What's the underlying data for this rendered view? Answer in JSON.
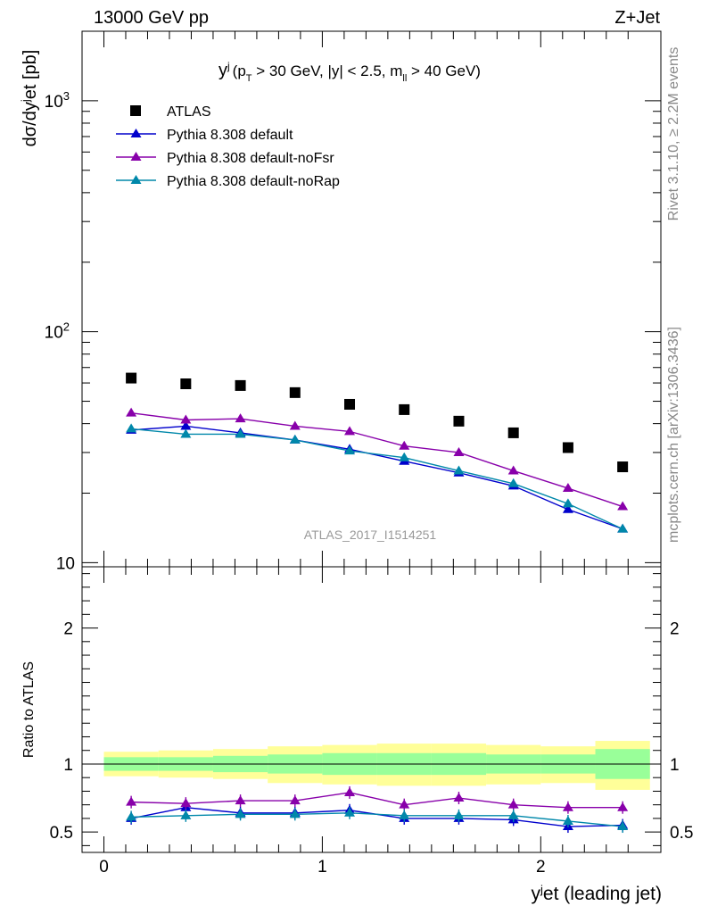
{
  "header": {
    "left": "13000 GeV pp",
    "right": "Z+Jet"
  },
  "side_labels": {
    "top": "Rivet 3.1.10, ≥ 2.2M events",
    "bottom": "mcplots.cern.ch [arXiv:1306.3436]"
  },
  "watermark": "ATLAS_2017_I1514251",
  "colors": {
    "atlas": "#000000",
    "default": "#0000cc",
    "noFsr": "#8800aa",
    "noRap": "#0088aa",
    "band_outer": "#ffff99",
    "band_inner": "#99ff99"
  },
  "chart_data": [
    {
      "type": "line",
      "panel": "main",
      "title_main": "y",
      "title_sup": "j",
      "title_cuts": "(p",
      "title_sub_T": "T",
      "title_rest1": " > 30 GeV, |y| < 2.5, m",
      "title_sub_ll": "ll",
      "title_rest2": " > 40 GeV)",
      "ylabel": "dσ/dy",
      "ylabel_sup": "j",
      "ylabel_rest": "et [pb]",
      "yscale": "log",
      "ylim": [
        9.6,
        2000
      ],
      "xlim": [
        -0.1,
        2.55
      ],
      "ytick_labels": [
        "10",
        "10",
        "10"
      ],
      "ytick_exps": [
        "",
        "2",
        "3"
      ],
      "x": [
        0.125,
        0.375,
        0.625,
        0.875,
        1.125,
        1.375,
        1.625,
        1.875,
        2.125,
        2.375
      ],
      "bin_edges": [
        0,
        0.25,
        0.5,
        0.75,
        1.0,
        1.25,
        1.5,
        1.75,
        2.0,
        2.25,
        2.5
      ],
      "legend": [
        "ATLAS",
        "Pythia 8.308 default",
        "Pythia 8.308 default-noFsr",
        "Pythia 8.308 default-noRap"
      ],
      "series": [
        {
          "name": "ATLAS",
          "key": "atlas",
          "marker": "square",
          "values": [
            63,
            59.5,
            58.5,
            54.5,
            48.5,
            46,
            41,
            36.5,
            31.5,
            26
          ]
        },
        {
          "name": "Pythia 8.308 default",
          "key": "default",
          "marker": "triangle",
          "values": [
            37.5,
            39,
            36.5,
            34,
            31,
            27.5,
            24.5,
            21.5,
            17,
            14
          ]
        },
        {
          "name": "Pythia 8.308 default-noFsr",
          "key": "noFsr",
          "marker": "triangle",
          "values": [
            44.5,
            41.5,
            42,
            39,
            37,
            32,
            30,
            25,
            21,
            17.5
          ]
        },
        {
          "name": "Pythia 8.308 default-noRap",
          "key": "noRap",
          "marker": "triangle",
          "values": [
            38,
            36,
            36,
            34,
            30.5,
            28.5,
            25,
            22,
            18,
            14
          ]
        }
      ]
    },
    {
      "type": "line",
      "panel": "ratio",
      "ylabel": "Ratio to ATLAS",
      "ylim": [
        0.35,
        2.45
      ],
      "xlim": [
        -0.1,
        2.55
      ],
      "xlabel": "y",
      "xlabel_sup": "j",
      "xlabel_rest": "et (leading jet)",
      "xtick_labels": [
        "0",
        "1",
        "2"
      ],
      "ytick_labels": [
        "0.5",
        "1",
        "2"
      ],
      "reference": 1,
      "band_outer_lo": [
        0.91,
        0.9,
        0.89,
        0.86,
        0.85,
        0.84,
        0.84,
        0.85,
        0.86,
        0.81
      ],
      "band_outer_hi": [
        1.09,
        1.1,
        1.11,
        1.13,
        1.14,
        1.15,
        1.15,
        1.14,
        1.13,
        1.17
      ],
      "band_inner_lo": [
        0.95,
        0.95,
        0.94,
        0.93,
        0.92,
        0.92,
        0.92,
        0.93,
        0.93,
        0.89
      ],
      "band_inner_hi": [
        1.05,
        1.05,
        1.06,
        1.07,
        1.08,
        1.08,
        1.08,
        1.07,
        1.07,
        1.11
      ],
      "series": [
        {
          "name": "Pythia 8.308 default",
          "key": "default",
          "values": [
            0.6,
            0.68,
            0.64,
            0.64,
            0.66,
            0.6,
            0.6,
            0.59,
            0.54,
            0.55
          ]
        },
        {
          "name": "Pythia 8.308 default-noFsr",
          "key": "noFsr",
          "values": [
            0.72,
            0.71,
            0.73,
            0.73,
            0.79,
            0.7,
            0.75,
            0.7,
            0.68,
            0.68
          ]
        },
        {
          "name": "Pythia 8.308 default-noRap",
          "key": "noRap",
          "values": [
            0.61,
            0.62,
            0.63,
            0.63,
            0.64,
            0.62,
            0.62,
            0.62,
            0.58,
            0.54
          ]
        }
      ]
    }
  ]
}
